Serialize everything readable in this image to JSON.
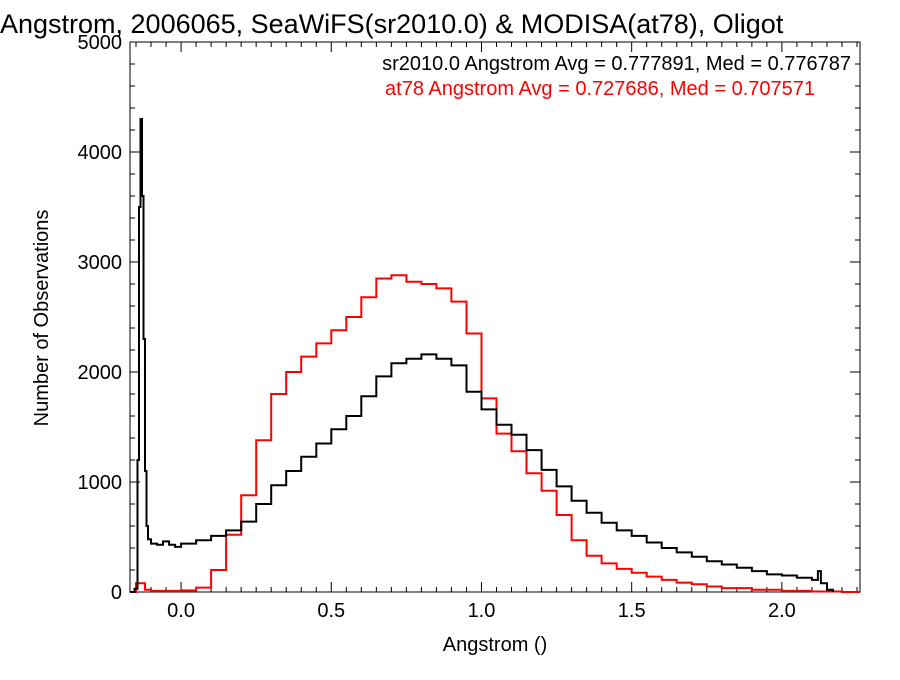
{
  "chart_data": {
    "type": "line",
    "title": "Angstrom, 2006065, SeaWiFS(sr2010.0) & MODISA(at78), Oligot",
    "xlabel": "Angstrom ()",
    "ylabel": "Number of Observations",
    "xlim": [
      -0.17,
      2.26
    ],
    "ylim": [
      0,
      5000
    ],
    "x_ticks": [
      "0.0",
      "0.5",
      "1.0",
      "1.5",
      "2.0"
    ],
    "y_ticks": [
      "0",
      "1000",
      "2000",
      "3000",
      "4000",
      "5000"
    ],
    "grid": false,
    "legend_position": "top-right",
    "annotations": [
      {
        "text": "sr2010.0 Angstrom Avg = 0.777891, Med = 0.776787",
        "color": "#000000"
      },
      {
        "text": "at78 Angstrom Avg = 0.727686, Med = 0.707571",
        "color": "#ff0000"
      }
    ],
    "series": [
      {
        "color": "#000000",
        "style": "step",
        "points": [
          [
            -0.17,
            0
          ],
          [
            -0.155,
            30
          ],
          [
            -0.145,
            1200
          ],
          [
            -0.14,
            3500
          ],
          [
            -0.135,
            4300
          ],
          [
            -0.13,
            3600
          ],
          [
            -0.125,
            2300
          ],
          [
            -0.12,
            1100
          ],
          [
            -0.115,
            600
          ],
          [
            -0.11,
            480
          ],
          [
            -0.1,
            440
          ],
          [
            -0.08,
            430
          ],
          [
            -0.06,
            460
          ],
          [
            -0.04,
            430
          ],
          [
            -0.02,
            410
          ],
          [
            0.0,
            440
          ],
          [
            0.05,
            470
          ],
          [
            0.1,
            510
          ],
          [
            0.15,
            560
          ],
          [
            0.2,
            640
          ],
          [
            0.25,
            800
          ],
          [
            0.3,
            970
          ],
          [
            0.35,
            1100
          ],
          [
            0.4,
            1230
          ],
          [
            0.45,
            1350
          ],
          [
            0.5,
            1480
          ],
          [
            0.55,
            1600
          ],
          [
            0.6,
            1780
          ],
          [
            0.65,
            1960
          ],
          [
            0.7,
            2080
          ],
          [
            0.75,
            2120
          ],
          [
            0.8,
            2160
          ],
          [
            0.85,
            2120
          ],
          [
            0.9,
            2060
          ],
          [
            0.95,
            1820
          ],
          [
            1.0,
            1660
          ],
          [
            1.05,
            1520
          ],
          [
            1.1,
            1430
          ],
          [
            1.15,
            1290
          ],
          [
            1.2,
            1110
          ],
          [
            1.25,
            960
          ],
          [
            1.3,
            830
          ],
          [
            1.35,
            720
          ],
          [
            1.4,
            630
          ],
          [
            1.45,
            560
          ],
          [
            1.5,
            510
          ],
          [
            1.55,
            450
          ],
          [
            1.6,
            400
          ],
          [
            1.65,
            360
          ],
          [
            1.7,
            320
          ],
          [
            1.75,
            280
          ],
          [
            1.8,
            250
          ],
          [
            1.85,
            220
          ],
          [
            1.9,
            190
          ],
          [
            1.95,
            160
          ],
          [
            2.0,
            150
          ],
          [
            2.05,
            130
          ],
          [
            2.1,
            110
          ],
          [
            2.12,
            190
          ],
          [
            2.13,
            80
          ],
          [
            2.15,
            20
          ],
          [
            2.17,
            0
          ]
        ]
      },
      {
        "color": "#ff0000",
        "style": "step",
        "points": [
          [
            -0.17,
            0
          ],
          [
            -0.15,
            80
          ],
          [
            -0.12,
            20
          ],
          [
            -0.1,
            10
          ],
          [
            0.0,
            15
          ],
          [
            0.05,
            40
          ],
          [
            0.1,
            200
          ],
          [
            0.15,
            520
          ],
          [
            0.2,
            880
          ],
          [
            0.25,
            1380
          ],
          [
            0.3,
            1800
          ],
          [
            0.35,
            2000
          ],
          [
            0.4,
            2140
          ],
          [
            0.45,
            2260
          ],
          [
            0.5,
            2380
          ],
          [
            0.55,
            2500
          ],
          [
            0.6,
            2680
          ],
          [
            0.65,
            2850
          ],
          [
            0.7,
            2880
          ],
          [
            0.75,
            2820
          ],
          [
            0.8,
            2800
          ],
          [
            0.85,
            2760
          ],
          [
            0.9,
            2640
          ],
          [
            0.95,
            2350
          ],
          [
            1.0,
            1760
          ],
          [
            1.05,
            1440
          ],
          [
            1.1,
            1280
          ],
          [
            1.15,
            1080
          ],
          [
            1.2,
            920
          ],
          [
            1.25,
            700
          ],
          [
            1.3,
            470
          ],
          [
            1.35,
            330
          ],
          [
            1.4,
            260
          ],
          [
            1.45,
            210
          ],
          [
            1.5,
            175
          ],
          [
            1.55,
            140
          ],
          [
            1.6,
            110
          ],
          [
            1.65,
            85
          ],
          [
            1.7,
            70
          ],
          [
            1.75,
            50
          ],
          [
            1.8,
            35
          ],
          [
            1.9,
            20
          ],
          [
            2.0,
            10
          ],
          [
            2.1,
            5
          ],
          [
            2.2,
            0
          ],
          [
            2.26,
            0
          ]
        ]
      }
    ]
  }
}
